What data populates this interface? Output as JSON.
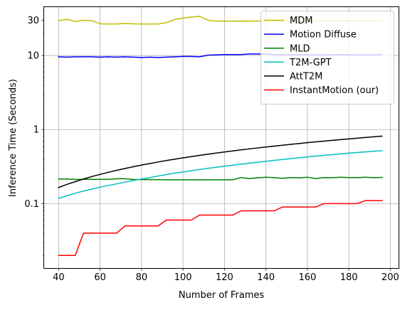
{
  "chart_data": {
    "type": "line",
    "xlabel": "Number of Frames",
    "ylabel": "Inference Time (Seconds)",
    "yscale": "log",
    "xlim": [
      33,
      204
    ],
    "ylim": [
      0.0135,
      45
    ],
    "grid": true,
    "legend_position": "top-right",
    "x_ticks": [
      40,
      60,
      80,
      100,
      120,
      140,
      160,
      180,
      200
    ],
    "x_tick_labels": [
      "40",
      "60",
      "80",
      "100",
      "120",
      "140",
      "160",
      "180",
      "200"
    ],
    "y_ticks": [
      0.1,
      1,
      10,
      30
    ],
    "y_tick_labels": [
      "0.1",
      "1",
      "10",
      "30"
    ],
    "x": [
      40,
      44,
      48,
      52,
      56,
      60,
      64,
      68,
      72,
      76,
      80,
      84,
      88,
      92,
      96,
      100,
      104,
      108,
      112,
      116,
      120,
      124,
      128,
      132,
      136,
      140,
      144,
      148,
      152,
      156,
      160,
      164,
      168,
      172,
      176,
      180,
      184,
      188,
      192,
      196
    ],
    "series": [
      {
        "name": "MDM",
        "color": "#bfbf00",
        "values": [
          29.5,
          30.8,
          28.8,
          29.9,
          29.6,
          26.8,
          26.6,
          26.7,
          27.0,
          26.8,
          26.6,
          26.6,
          26.6,
          27.8,
          30.5,
          32.0,
          33.0,
          33.8,
          30.0,
          29.1,
          29.1,
          29.0,
          29.2,
          29.1,
          29.2,
          29.2,
          29.4,
          29.2,
          29.3,
          29.2,
          29.3,
          29.2,
          29.3,
          29.3,
          29.3,
          29.3,
          29.3,
          29.3,
          29.3,
          29.3
        ]
      },
      {
        "name": "Motion Diffuse",
        "color": "#0000ff",
        "values": [
          9.6,
          9.5,
          9.6,
          9.6,
          9.6,
          9.5,
          9.6,
          9.5,
          9.6,
          9.5,
          9.4,
          9.5,
          9.4,
          9.5,
          9.6,
          9.7,
          9.7,
          9.6,
          10.1,
          10.2,
          10.3,
          10.3,
          10.3,
          10.5,
          10.5,
          10.4,
          10.3,
          10.2,
          10.2,
          10.3,
          10.2,
          10.2,
          10.2,
          10.2,
          10.3,
          10.2,
          10.2,
          10.2,
          10.2,
          10.3
        ]
      },
      {
        "name": "MLD",
        "color": "#008000",
        "values": [
          0.215,
          0.215,
          0.212,
          0.213,
          0.213,
          0.213,
          0.213,
          0.217,
          0.217,
          0.212,
          0.211,
          0.211,
          0.211,
          0.21,
          0.21,
          0.21,
          0.21,
          0.21,
          0.21,
          0.21,
          0.21,
          0.21,
          0.225,
          0.218,
          0.223,
          0.227,
          0.225,
          0.22,
          0.225,
          0.223,
          0.227,
          0.218,
          0.225,
          0.224,
          0.227,
          0.225,
          0.225,
          0.227,
          0.224,
          0.226
        ]
      },
      {
        "name": "T2M-GPT",
        "color": "#00bfbf",
        "values": [
          0.118,
          0.128,
          0.138,
          0.148,
          0.157,
          0.167,
          0.176,
          0.185,
          0.195,
          0.205,
          0.215,
          0.225,
          0.236,
          0.247,
          0.258,
          0.268,
          0.278,
          0.289,
          0.3,
          0.31,
          0.32,
          0.33,
          0.341,
          0.352,
          0.362,
          0.373,
          0.384,
          0.395,
          0.405,
          0.416,
          0.427,
          0.437,
          0.448,
          0.459,
          0.469,
          0.48,
          0.49,
          0.5,
          0.51,
          0.52
        ]
      },
      {
        "name": "AttT2M",
        "color": "#000000",
        "values": [
          0.165,
          0.182,
          0.198,
          0.215,
          0.232,
          0.248,
          0.265,
          0.282,
          0.298,
          0.315,
          0.332,
          0.348,
          0.365,
          0.382,
          0.398,
          0.415,
          0.432,
          0.448,
          0.465,
          0.482,
          0.498,
          0.515,
          0.532,
          0.548,
          0.565,
          0.582,
          0.598,
          0.615,
          0.632,
          0.648,
          0.665,
          0.682,
          0.698,
          0.715,
          0.732,
          0.748,
          0.765,
          0.782,
          0.798,
          0.815
        ]
      },
      {
        "name": "InstantMotion (our)",
        "color": "#ff0000",
        "values": [
          0.02,
          0.02,
          0.02,
          0.04,
          0.04,
          0.04,
          0.04,
          0.04,
          0.05,
          0.05,
          0.05,
          0.05,
          0.05,
          0.06,
          0.06,
          0.06,
          0.06,
          0.07,
          0.07,
          0.07,
          0.07,
          0.07,
          0.08,
          0.08,
          0.08,
          0.08,
          0.08,
          0.09,
          0.09,
          0.09,
          0.09,
          0.09,
          0.1,
          0.1,
          0.1,
          0.1,
          0.1,
          0.11,
          0.11,
          0.11
        ]
      }
    ]
  }
}
